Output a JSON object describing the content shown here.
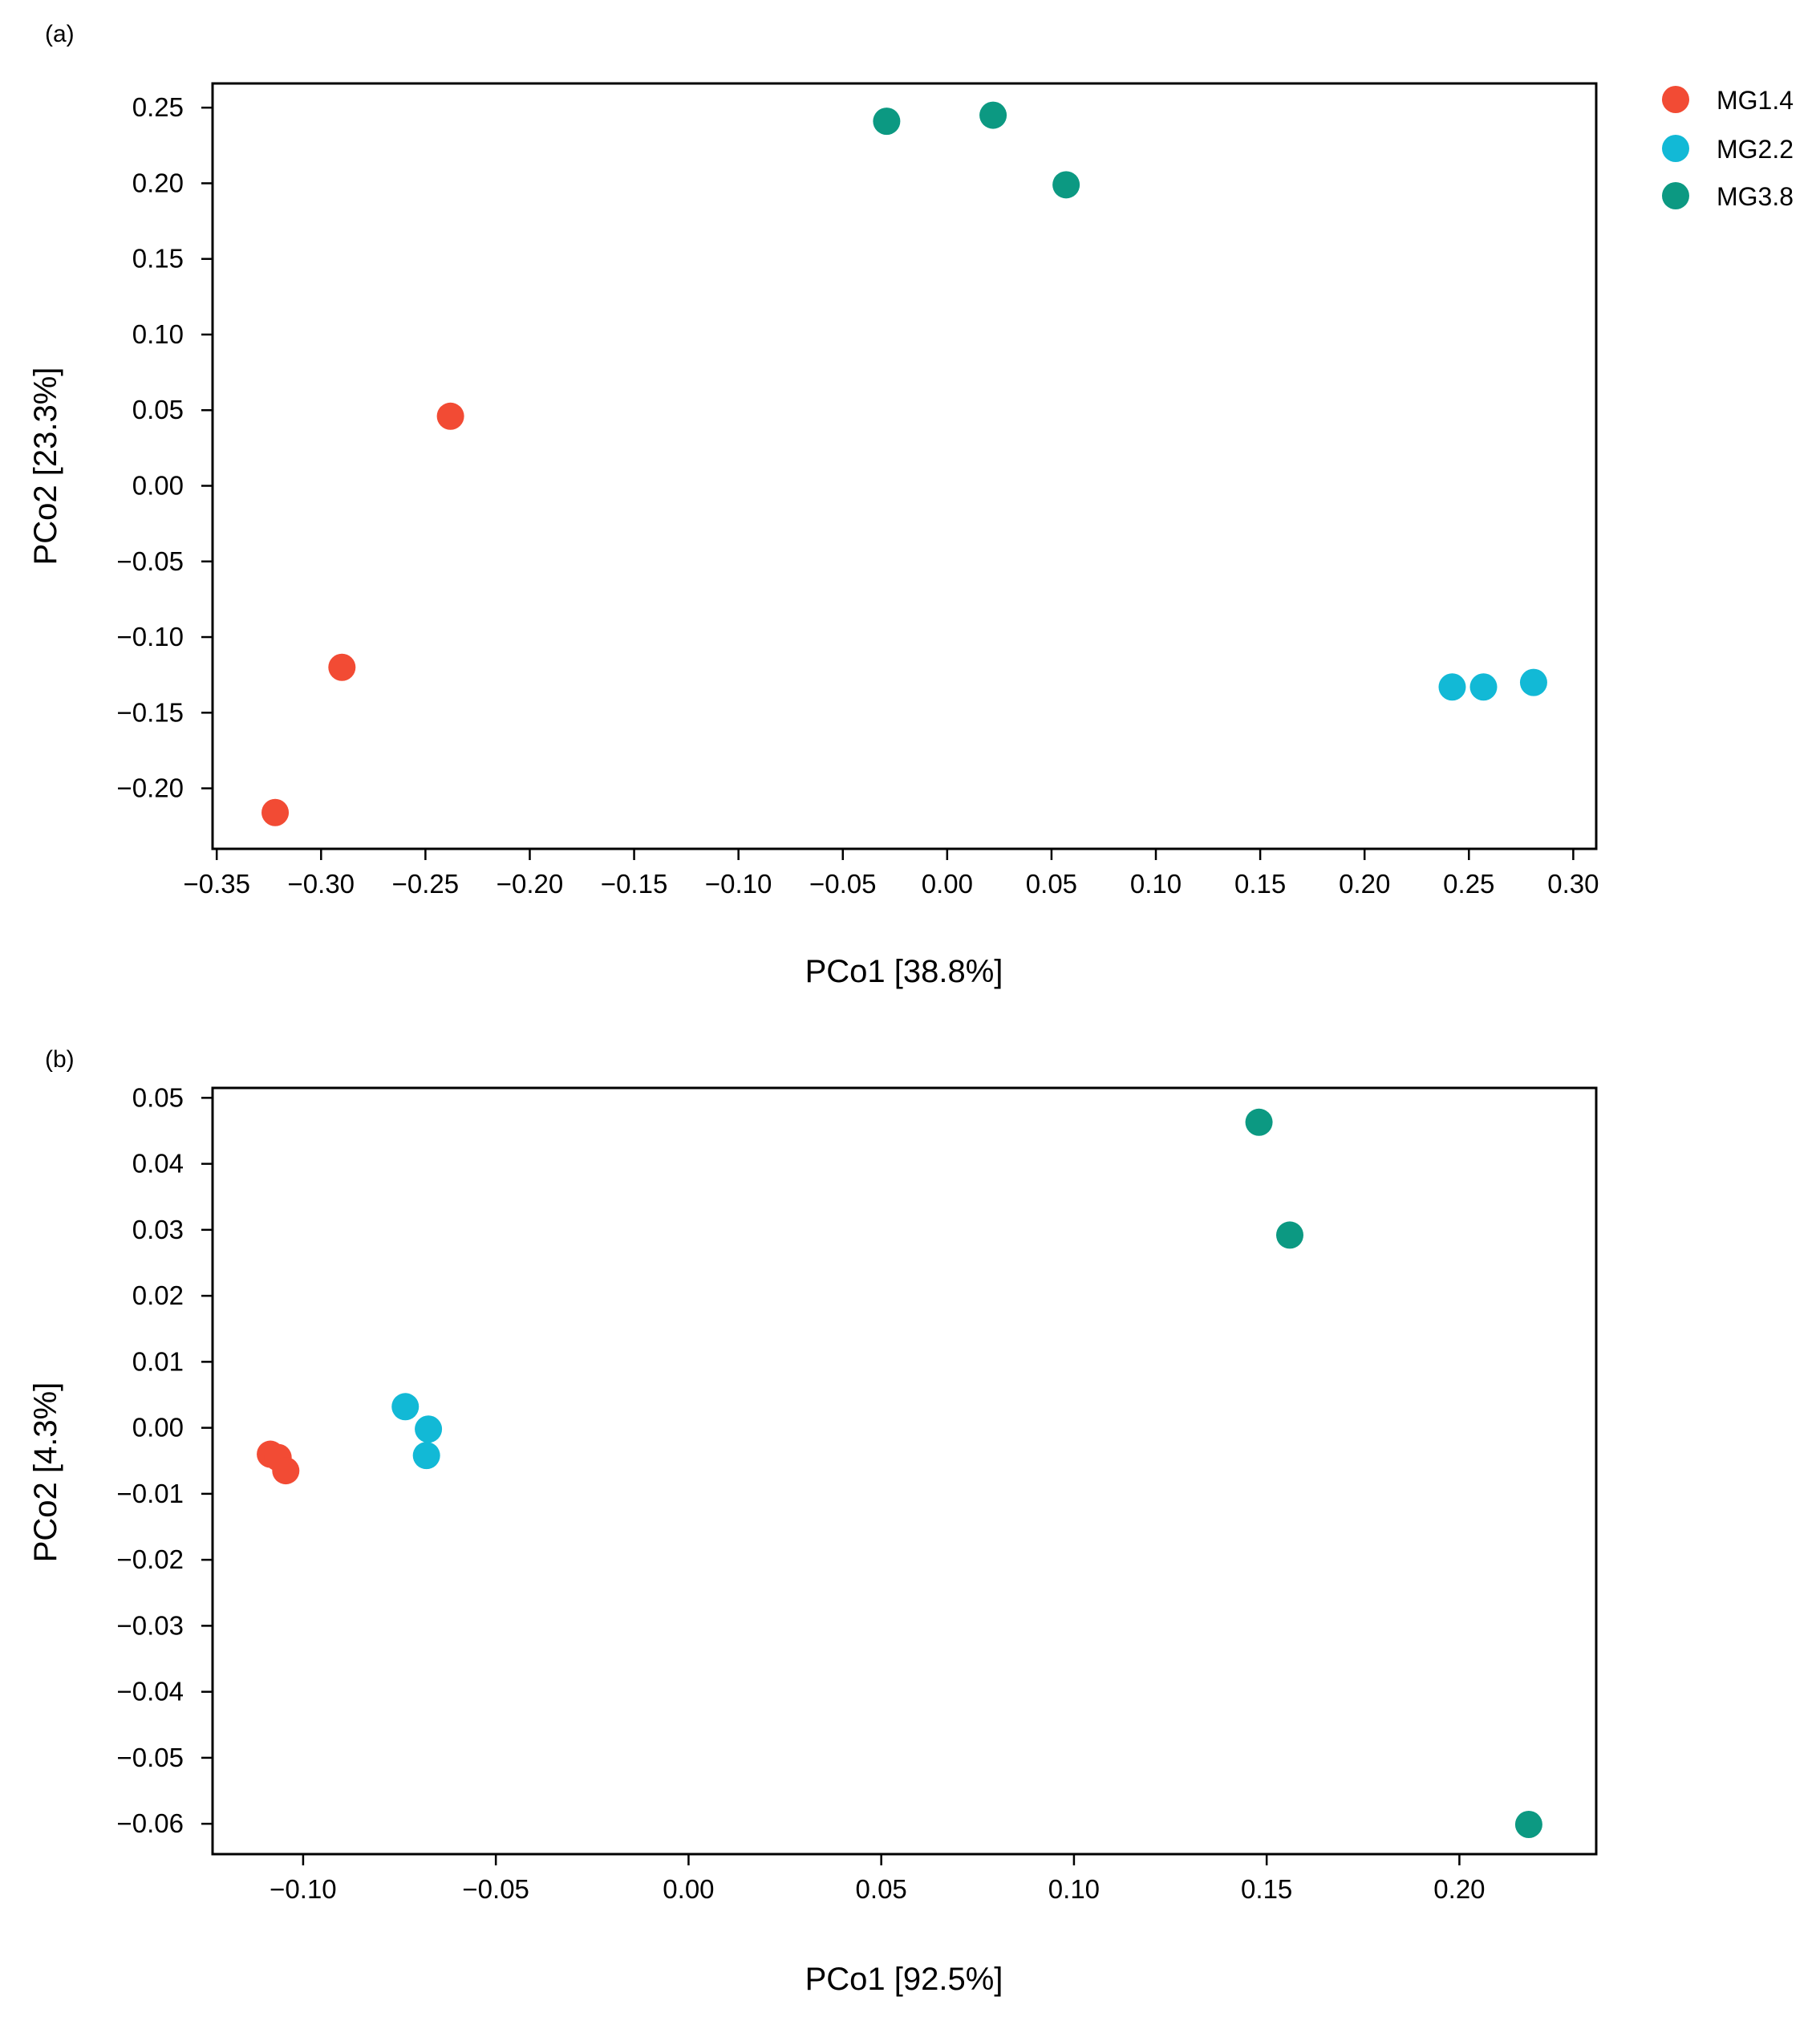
{
  "legend": [
    {
      "label": "MG1.4",
      "color": "#F24B34"
    },
    {
      "label": "MG2.2",
      "color": "#12B9D6"
    },
    {
      "label": "MG3.8",
      "color": "#0C9982"
    }
  ],
  "chart_data": [
    {
      "type": "scatter",
      "panel": "(a)",
      "xlabel": "PCo1 [38.8%]",
      "ylabel": "PCo2 [23.3%]",
      "xlim": [
        -0.352,
        0.311
      ],
      "ylim": [
        -0.24,
        0.266
      ],
      "xticks": [
        -0.35,
        -0.3,
        -0.25,
        -0.2,
        -0.15,
        -0.1,
        -0.05,
        0.0,
        0.05,
        0.1,
        0.15,
        0.2,
        0.25,
        0.3
      ],
      "xtick_labels": [
        "−0.35",
        "−0.30",
        "−0.25",
        "−0.20",
        "−0.15",
        "−0.10",
        "−0.05",
        "0.00",
        "0.05",
        "0.10",
        "0.15",
        "0.20",
        "0.25",
        "0.30"
      ],
      "yticks": [
        0.25,
        0.2,
        0.15,
        0.1,
        0.05,
        0.0,
        -0.05,
        -0.1,
        -0.15,
        -0.2
      ],
      "ytick_labels": [
        "0.25",
        "0.20",
        "0.15",
        "0.10",
        "0.05",
        "0.00",
        "−0.05",
        "−0.10",
        "−0.15",
        "−0.20"
      ],
      "series": [
        {
          "name": "MG1.4",
          "points": [
            [
              -0.322,
              -0.216
            ],
            [
              -0.29,
              -0.12
            ],
            [
              -0.238,
              0.046
            ]
          ]
        },
        {
          "name": "MG2.2",
          "points": [
            [
              0.242,
              -0.133
            ],
            [
              0.257,
              -0.133
            ],
            [
              0.281,
              -0.13
            ]
          ]
        },
        {
          "name": "MG3.8",
          "points": [
            [
              -0.029,
              0.241
            ],
            [
              0.022,
              0.245
            ],
            [
              0.057,
              0.199
            ]
          ]
        }
      ]
    },
    {
      "type": "scatter",
      "panel": "(b)",
      "xlabel": "PCo1 [92.5%]",
      "ylabel": "PCo2 [4.3%]",
      "xlim": [
        -0.1235,
        0.2355
      ],
      "ylim": [
        -0.0646,
        0.0515
      ],
      "xticks": [
        -0.1,
        -0.05,
        0.0,
        0.05,
        0.1,
        0.15,
        0.2
      ],
      "xtick_labels": [
        "−0.10",
        "−0.05",
        "0.00",
        "0.05",
        "0.10",
        "0.15",
        "0.20"
      ],
      "yticks": [
        0.05,
        0.04,
        0.03,
        0.02,
        0.01,
        0.0,
        -0.01,
        -0.02,
        -0.03,
        -0.04,
        -0.05,
        -0.06
      ],
      "ytick_labels": [
        "0.05",
        "0.04",
        "0.03",
        "0.02",
        "0.01",
        "0.00",
        "−0.01",
        "−0.02",
        "−0.03",
        "−0.04",
        "−0.05",
        "−0.06"
      ],
      "series": [
        {
          "name": "MG1.4",
          "points": [
            [
              -0.1085,
              -0.004
            ],
            [
              -0.1065,
              -0.0045
            ],
            [
              -0.1045,
              -0.0065
            ]
          ]
        },
        {
          "name": "MG2.2",
          "points": [
            [
              -0.0735,
              0.0032
            ],
            [
              -0.0675,
              -0.0002
            ],
            [
              -0.068,
              -0.0042
            ]
          ]
        },
        {
          "name": "MG3.8",
          "points": [
            [
              0.148,
              0.0463
            ],
            [
              0.156,
              0.0292
            ],
            [
              0.218,
              -0.0601
            ]
          ]
        }
      ]
    }
  ]
}
